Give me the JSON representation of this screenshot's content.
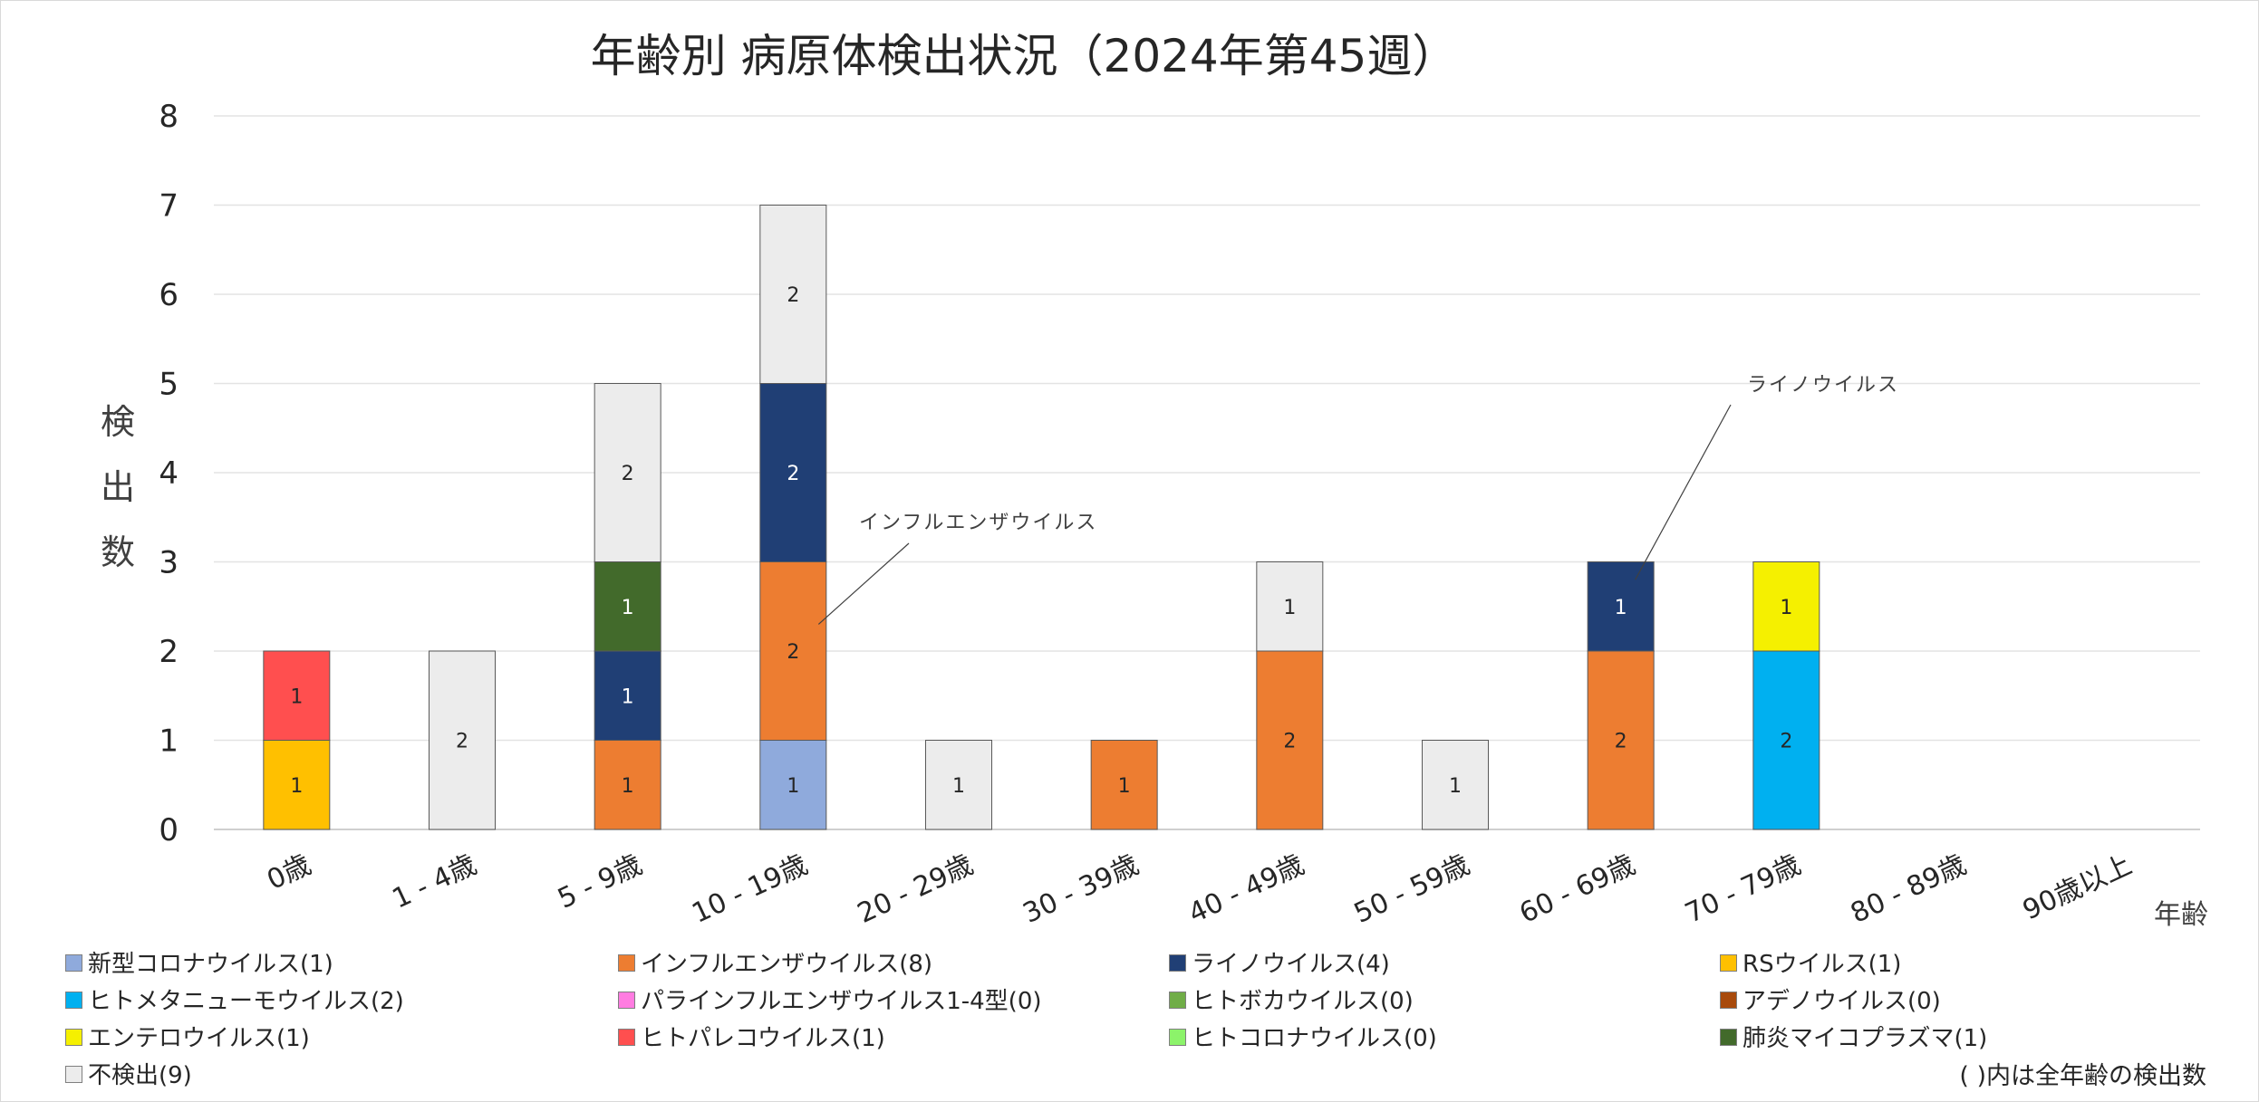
{
  "chart_data": {
    "type": "bar",
    "stacked": true,
    "title": "年齢別 病原体検出状況（2024年第45週）",
    "ylabel": "検出数",
    "xlabel": "年齢",
    "ylim": [
      0,
      8
    ],
    "yticks": [
      0,
      1,
      2,
      3,
      4,
      5,
      6,
      7,
      8
    ],
    "grid": true,
    "legend_position": "bottom",
    "categories": [
      "0歳",
      "1 - 4歳",
      "5 - 9歳",
      "10 - 19歳",
      "20 - 29歳",
      "30 - 39歳",
      "40 - 49歳",
      "50 - 59歳",
      "60 - 69歳",
      "70 - 79歳",
      "80 - 89歳",
      "90歳以上"
    ],
    "series": [
      {
        "name": "新型コロナウイルス(1)",
        "color": "#8faadc",
        "label_color": "#262626",
        "values": [
          0,
          0,
          0,
          1,
          0,
          0,
          0,
          0,
          0,
          0,
          0,
          0
        ]
      },
      {
        "name": "インフルエンザウイルス(8)",
        "color": "#ed7d31",
        "label_color": "#262626",
        "values": [
          0,
          0,
          1,
          2,
          0,
          1,
          2,
          0,
          2,
          0,
          0,
          0
        ]
      },
      {
        "name": "ライノウイルス(4)",
        "color": "#203f75",
        "label_color": "#ffffff",
        "values": [
          0,
          0,
          1,
          2,
          0,
          0,
          0,
          0,
          1,
          0,
          0,
          0
        ]
      },
      {
        "name": "RSウイルス(1)",
        "color": "#ffc000",
        "label_color": "#262626",
        "values": [
          1,
          0,
          0,
          0,
          0,
          0,
          0,
          0,
          0,
          0,
          0,
          0
        ]
      },
      {
        "name": "ヒトメタニューモウイルス(2)",
        "color": "#00b0f0",
        "label_color": "#262626",
        "values": [
          0,
          0,
          0,
          0,
          0,
          0,
          0,
          0,
          0,
          2,
          0,
          0
        ]
      },
      {
        "name": "パラインフルエンザウイルス1-4型(0)",
        "color": "#ff7ce1",
        "label_color": "#262626",
        "values": [
          0,
          0,
          0,
          0,
          0,
          0,
          0,
          0,
          0,
          0,
          0,
          0
        ]
      },
      {
        "name": "ヒトボカウイルス(0)",
        "color": "#70ad47",
        "label_color": "#262626",
        "values": [
          0,
          0,
          0,
          0,
          0,
          0,
          0,
          0,
          0,
          0,
          0,
          0
        ]
      },
      {
        "name": "アデノウイルス(0)",
        "color": "#a84a0c",
        "label_color": "#ffffff",
        "values": [
          0,
          0,
          0,
          0,
          0,
          0,
          0,
          0,
          0,
          0,
          0,
          0
        ]
      },
      {
        "name": "エンテロウイルス(1)",
        "color": "#f5f000",
        "label_color": "#262626",
        "values": [
          0,
          0,
          0,
          0,
          0,
          0,
          0,
          0,
          0,
          1,
          0,
          0
        ]
      },
      {
        "name": "ヒトパレコウイルス(1)",
        "color": "#ff4f4f",
        "label_color": "#262626",
        "values": [
          1,
          0,
          0,
          0,
          0,
          0,
          0,
          0,
          0,
          0,
          0,
          0
        ]
      },
      {
        "name": "ヒトコロナウイルス(0)",
        "color": "#8cf36a",
        "label_color": "#262626",
        "values": [
          0,
          0,
          0,
          0,
          0,
          0,
          0,
          0,
          0,
          0,
          0,
          0
        ]
      },
      {
        "name": "肺炎マイコプラズマ(1)",
        "color": "#426a2b",
        "label_color": "#ffffff",
        "values": [
          0,
          0,
          1,
          0,
          0,
          0,
          0,
          0,
          0,
          0,
          0,
          0
        ]
      },
      {
        "name": "不検出(9)",
        "color": "#ececec",
        "label_color": "#262626",
        "values": [
          0,
          2,
          2,
          2,
          1,
          0,
          1,
          1,
          0,
          0,
          0,
          0
        ]
      }
    ],
    "annotations": [
      {
        "text": "インフルエンザウイルス",
        "category": "10 - 19歳",
        "value": 2.3
      },
      {
        "text": "ライノウイルス",
        "category": "60 - 69歳",
        "value": 2.8
      }
    ],
    "note": "( )内は全年齢の検出数"
  }
}
